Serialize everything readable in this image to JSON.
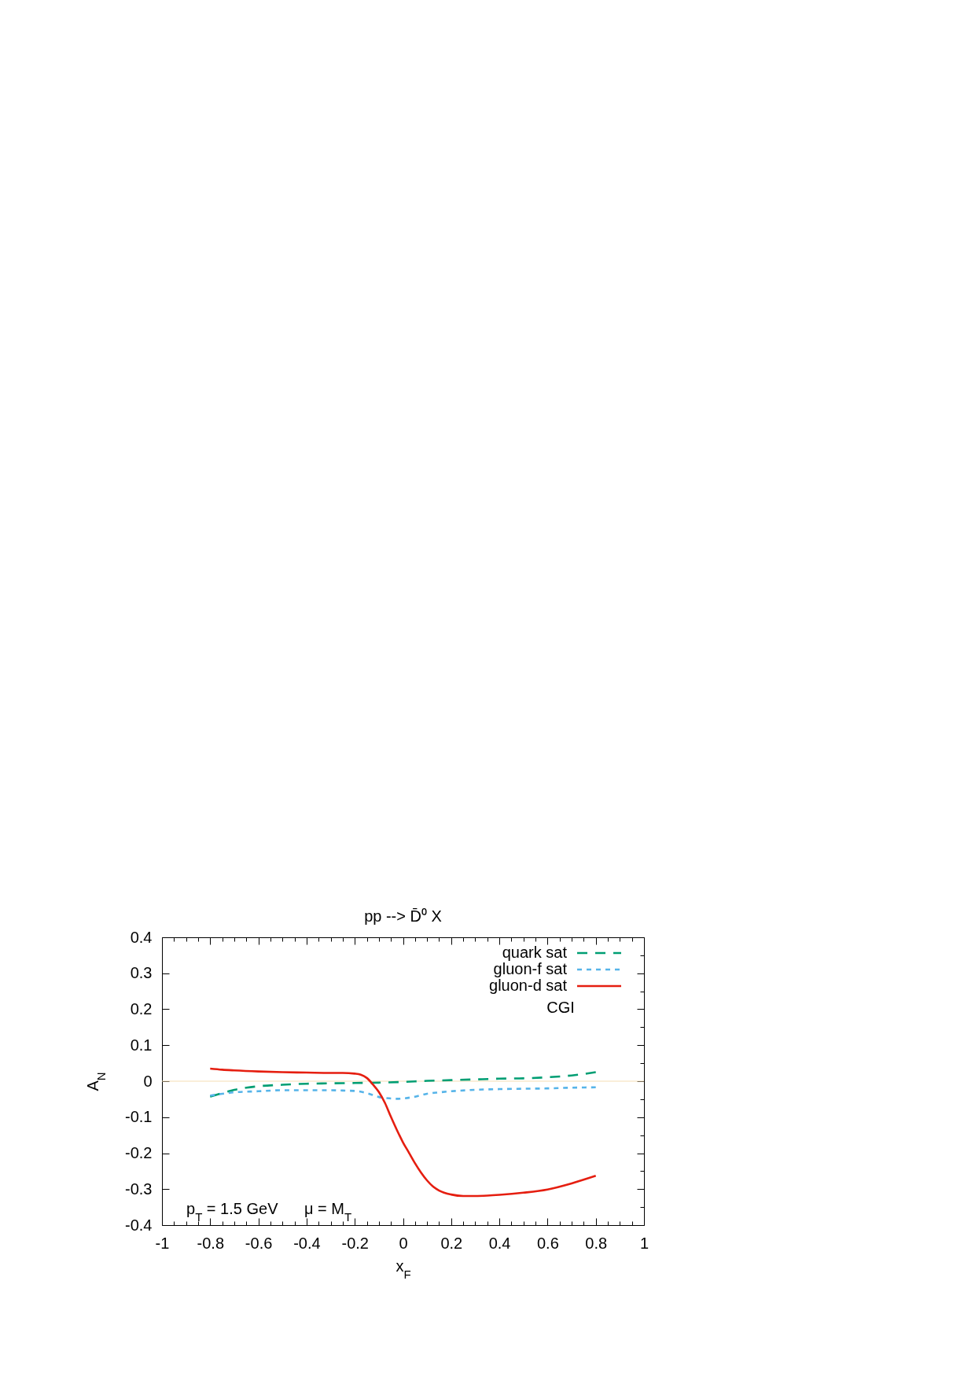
{
  "chart_data": {
    "type": "line",
    "title": "pp --> D̄⁰ X",
    "xlabel": "x$_{F}$",
    "ylabel": "A$_{N}$",
    "annotations": [
      "CGI",
      "p$_{T}$ = 1.5 GeV",
      "μ = M$_{T}$"
    ],
    "xlim": [
      -1,
      1
    ],
    "xticks": [
      -1,
      {
        "value": -0.95,
        "label": null
      },
      {
        "value": -0.9,
        "label": null
      },
      {
        "value": -0.85,
        "label": null
      },
      -0.8,
      {
        "value": -0.75,
        "label": null
      },
      {
        "value": -0.7,
        "label": null
      },
      {
        "value": -0.65,
        "label": null
      },
      -0.6,
      {
        "value": -0.55,
        "label": null
      },
      {
        "value": -0.5,
        "label": null
      },
      {
        "value": -0.45,
        "label": null
      },
      -0.4,
      {
        "value": -0.35,
        "label": null
      },
      {
        "value": -0.3,
        "label": null
      },
      {
        "value": -0.25,
        "label": null
      },
      -0.2,
      {
        "value": -0.15,
        "label": null
      },
      {
        "value": -0.1,
        "label": null
      },
      {
        "value": -0.05,
        "label": null
      },
      0,
      {
        "value": 0.05,
        "label": null
      },
      {
        "value": 0.1,
        "label": null
      },
      {
        "value": 0.15,
        "label": null
      },
      0.2,
      {
        "value": 0.25,
        "label": null
      },
      {
        "value": 0.3,
        "label": null
      },
      {
        "value": 0.35,
        "label": null
      },
      0.4,
      {
        "value": 0.45,
        "label": null
      },
      {
        "value": 0.5,
        "label": null
      },
      {
        "value": 0.55,
        "label": null
      },
      0.6,
      {
        "value": 0.65,
        "label": null
      },
      {
        "value": 0.7,
        "label": null
      },
      {
        "value": 0.75,
        "label": null
      },
      0.8,
      {
        "value": 0.85,
        "label": null
      },
      {
        "value": 0.9,
        "label": null
      },
      {
        "value": 0.95,
        "label": null
      },
      1
    ],
    "ylim": [
      -0.4,
      0.4
    ],
    "yticks": [
      -0.4,
      {
        "value": -0.35,
        "label": null
      },
      -0.3,
      {
        "value": -0.25,
        "label": null
      },
      -0.2,
      {
        "value": -0.15,
        "label": null
      },
      -0.1,
      {
        "value": -0.05,
        "label": null
      },
      0,
      {
        "value": 0.05,
        "label": null
      },
      0.1,
      {
        "value": 0.15,
        "label": null
      },
      0.2,
      {
        "value": 0.25,
        "label": null
      },
      0.3,
      {
        "value": 0.35,
        "label": null
      },
      0.4
    ],
    "series": [
      {
        "name": "quark sat",
        "color": "#009e73",
        "line_style": "dashed",
        "x": [
          -0.8,
          -0.75,
          -0.7,
          -0.65,
          -0.6,
          -0.5,
          -0.4,
          -0.3,
          -0.2,
          -0.1,
          0,
          0.1,
          0.2,
          0.3,
          0.4,
          0.5,
          0.6,
          0.7,
          0.8
        ],
        "values": [
          -0.043,
          -0.033,
          -0.024,
          -0.018,
          -0.014,
          -0.01,
          -0.007,
          -0.006,
          -0.005,
          -0.004,
          -0.002,
          0.001,
          0.003,
          0.005,
          0.007,
          0.008,
          0.011,
          0.016,
          0.025
        ]
      },
      {
        "name": "gluon-f sat",
        "color": "#56b4e9",
        "line_style": "dotted",
        "x": [
          -0.8,
          -0.75,
          -0.7,
          -0.6,
          -0.5,
          -0.4,
          -0.3,
          -0.25,
          -0.2,
          -0.15,
          -0.1,
          -0.05,
          -0.025,
          0,
          0.05,
          0.1,
          0.15,
          0.2,
          0.3,
          0.4,
          0.5,
          0.6,
          0.7,
          0.8
        ],
        "values": [
          -0.04,
          -0.035,
          -0.031,
          -0.028,
          -0.025,
          -0.025,
          -0.025,
          -0.026,
          -0.027,
          -0.033,
          -0.044,
          -0.048,
          -0.049,
          -0.048,
          -0.043,
          -0.035,
          -0.031,
          -0.028,
          -0.024,
          -0.022,
          -0.021,
          -0.02,
          -0.018,
          -0.017
        ]
      },
      {
        "name": "gluon-d sat",
        "color": "#e51e10",
        "line_style": "solid",
        "x": [
          -0.8,
          -0.75,
          -0.7,
          -0.6,
          -0.5,
          -0.4,
          -0.3,
          -0.25,
          -0.2,
          -0.175,
          -0.15,
          -0.125,
          -0.1,
          -0.075,
          -0.05,
          -0.025,
          0,
          0.025,
          0.05,
          0.075,
          0.1,
          0.125,
          0.15,
          0.2,
          0.25,
          0.3,
          0.35,
          0.4,
          0.5,
          0.6,
          0.7,
          0.8
        ],
        "values": [
          0.035,
          0.032,
          0.03,
          0.027,
          0.025,
          0.024,
          0.023,
          0.023,
          0.021,
          0.018,
          0.009,
          -0.009,
          -0.03,
          -0.06,
          -0.099,
          -0.136,
          -0.17,
          -0.199,
          -0.228,
          -0.254,
          -0.276,
          -0.293,
          -0.304,
          -0.315,
          -0.319,
          -0.319,
          -0.318,
          -0.316,
          -0.31,
          -0.301,
          -0.284,
          -0.263
        ]
      }
    ],
    "ref_lines": [
      {
        "axis": "y",
        "value": 0,
        "color": "#f5deb3"
      }
    ],
    "legend": "top right"
  }
}
